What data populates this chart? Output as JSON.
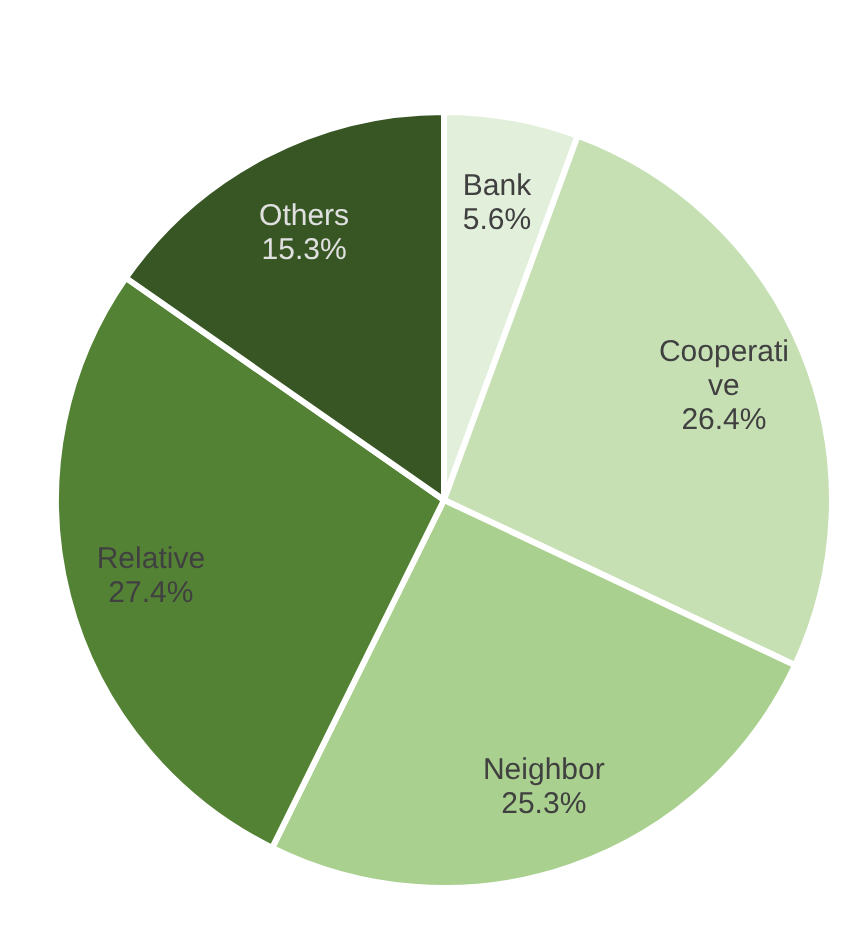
{
  "chart_data": {
    "type": "pie",
    "categories": [
      "Bank",
      "Cooperative",
      "Neighbor",
      "Relative",
      "Others"
    ],
    "values": [
      5.6,
      26.4,
      25.3,
      27.4,
      15.3
    ],
    "colors": [
      "#e2efda",
      "#c6e0b4",
      "#a9d08e",
      "#548235",
      "#375623"
    ],
    "value_labels": [
      "5.6%",
      "26.4%",
      "25.3%",
      "27.4%",
      "15.3%"
    ]
  }
}
